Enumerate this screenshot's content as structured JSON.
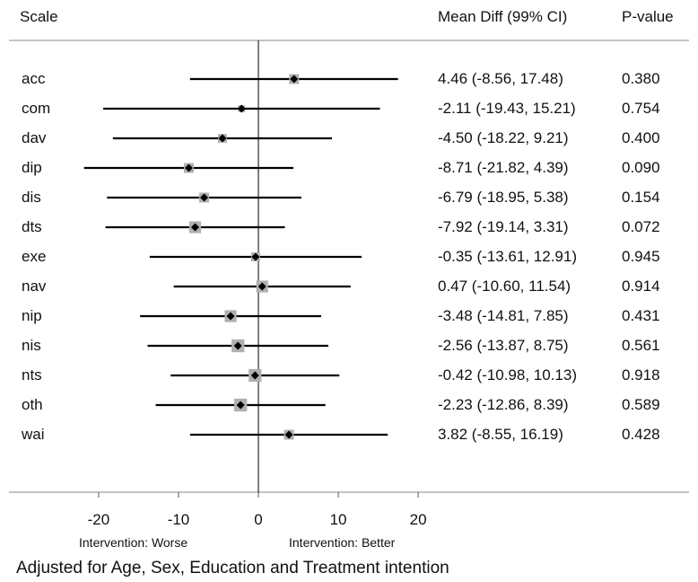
{
  "headers": {
    "scale": "Scale",
    "estimate": "Mean Diff (99% CI)",
    "pvalue": "P-value"
  },
  "chart_data": {
    "type": "forest",
    "x_axis": {
      "ticks": [
        -20,
        -10,
        0,
        10,
        20
      ],
      "range": [
        -31,
        21
      ],
      "reference_line": 0
    },
    "rows": [
      {
        "label": "acc",
        "mean": 4.46,
        "lower": -8.56,
        "upper": 17.48,
        "ci_text": "4.46 (-8.56, 17.48)",
        "p": "0.380",
        "weight": 1.0
      },
      {
        "label": "com",
        "mean": -2.11,
        "lower": -19.43,
        "upper": 15.21,
        "ci_text": "-2.11 (-19.43, 15.21)",
        "p": "0.754",
        "weight": 0.7
      },
      {
        "label": "dav",
        "mean": -4.5,
        "lower": -18.22,
        "upper": 9.21,
        "ci_text": "-4.50 (-18.22, 9.21)",
        "p": "0.400",
        "weight": 0.9
      },
      {
        "label": "dip",
        "mean": -8.71,
        "lower": -21.82,
        "upper": 4.39,
        "ci_text": "-8.71 (-21.82, 4.39)",
        "p": "0.090",
        "weight": 1.0
      },
      {
        "label": "dis",
        "mean": -6.79,
        "lower": -18.95,
        "upper": 5.38,
        "ci_text": "-6.79 (-18.95, 5.38)",
        "p": "0.154",
        "weight": 1.0
      },
      {
        "label": "dts",
        "mean": -7.92,
        "lower": -19.14,
        "upper": 3.31,
        "ci_text": "-7.92 (-19.14, 3.31)",
        "p": "0.072",
        "weight": 1.2
      },
      {
        "label": "exe",
        "mean": -0.35,
        "lower": -13.61,
        "upper": 12.91,
        "ci_text": "-0.35 (-13.61, 12.91)",
        "p": "0.945",
        "weight": 0.9
      },
      {
        "label": "nav",
        "mean": 0.47,
        "lower": -10.6,
        "upper": 11.54,
        "ci_text": "0.47 (-10.60, 11.54)",
        "p": "0.914",
        "weight": 1.2
      },
      {
        "label": "nip",
        "mean": -3.48,
        "lower": -14.81,
        "upper": 7.85,
        "ci_text": "-3.48 (-14.81, 7.85)",
        "p": "0.431",
        "weight": 1.2
      },
      {
        "label": "nis",
        "mean": -2.56,
        "lower": -13.87,
        "upper": 8.75,
        "ci_text": "-2.56 (-13.87, 8.75)",
        "p": "0.561",
        "weight": 1.3
      },
      {
        "label": "nts",
        "mean": -0.42,
        "lower": -10.98,
        "upper": 10.13,
        "ci_text": "-0.42 (-10.98, 10.13)",
        "p": "0.918",
        "weight": 1.3
      },
      {
        "label": "oth",
        "mean": -2.23,
        "lower": -12.86,
        "upper": 8.39,
        "ci_text": "-2.23 (-12.86, 8.39)",
        "p": "0.589",
        "weight": 1.3
      },
      {
        "label": "wai",
        "mean": 3.82,
        "lower": -8.55,
        "upper": 16.19,
        "ci_text": "3.82 (-8.55, 16.19)",
        "p": "0.428",
        "weight": 1.0
      }
    ],
    "annotations": {
      "left": "Intervention: Worse",
      "right": "Intervention: Better"
    },
    "footnote": "Adjusted for Age, Sex, Education and Treatment intention",
    "colors": {
      "line": "#000000",
      "box": "#b0b0b0",
      "point": "#000000"
    }
  }
}
